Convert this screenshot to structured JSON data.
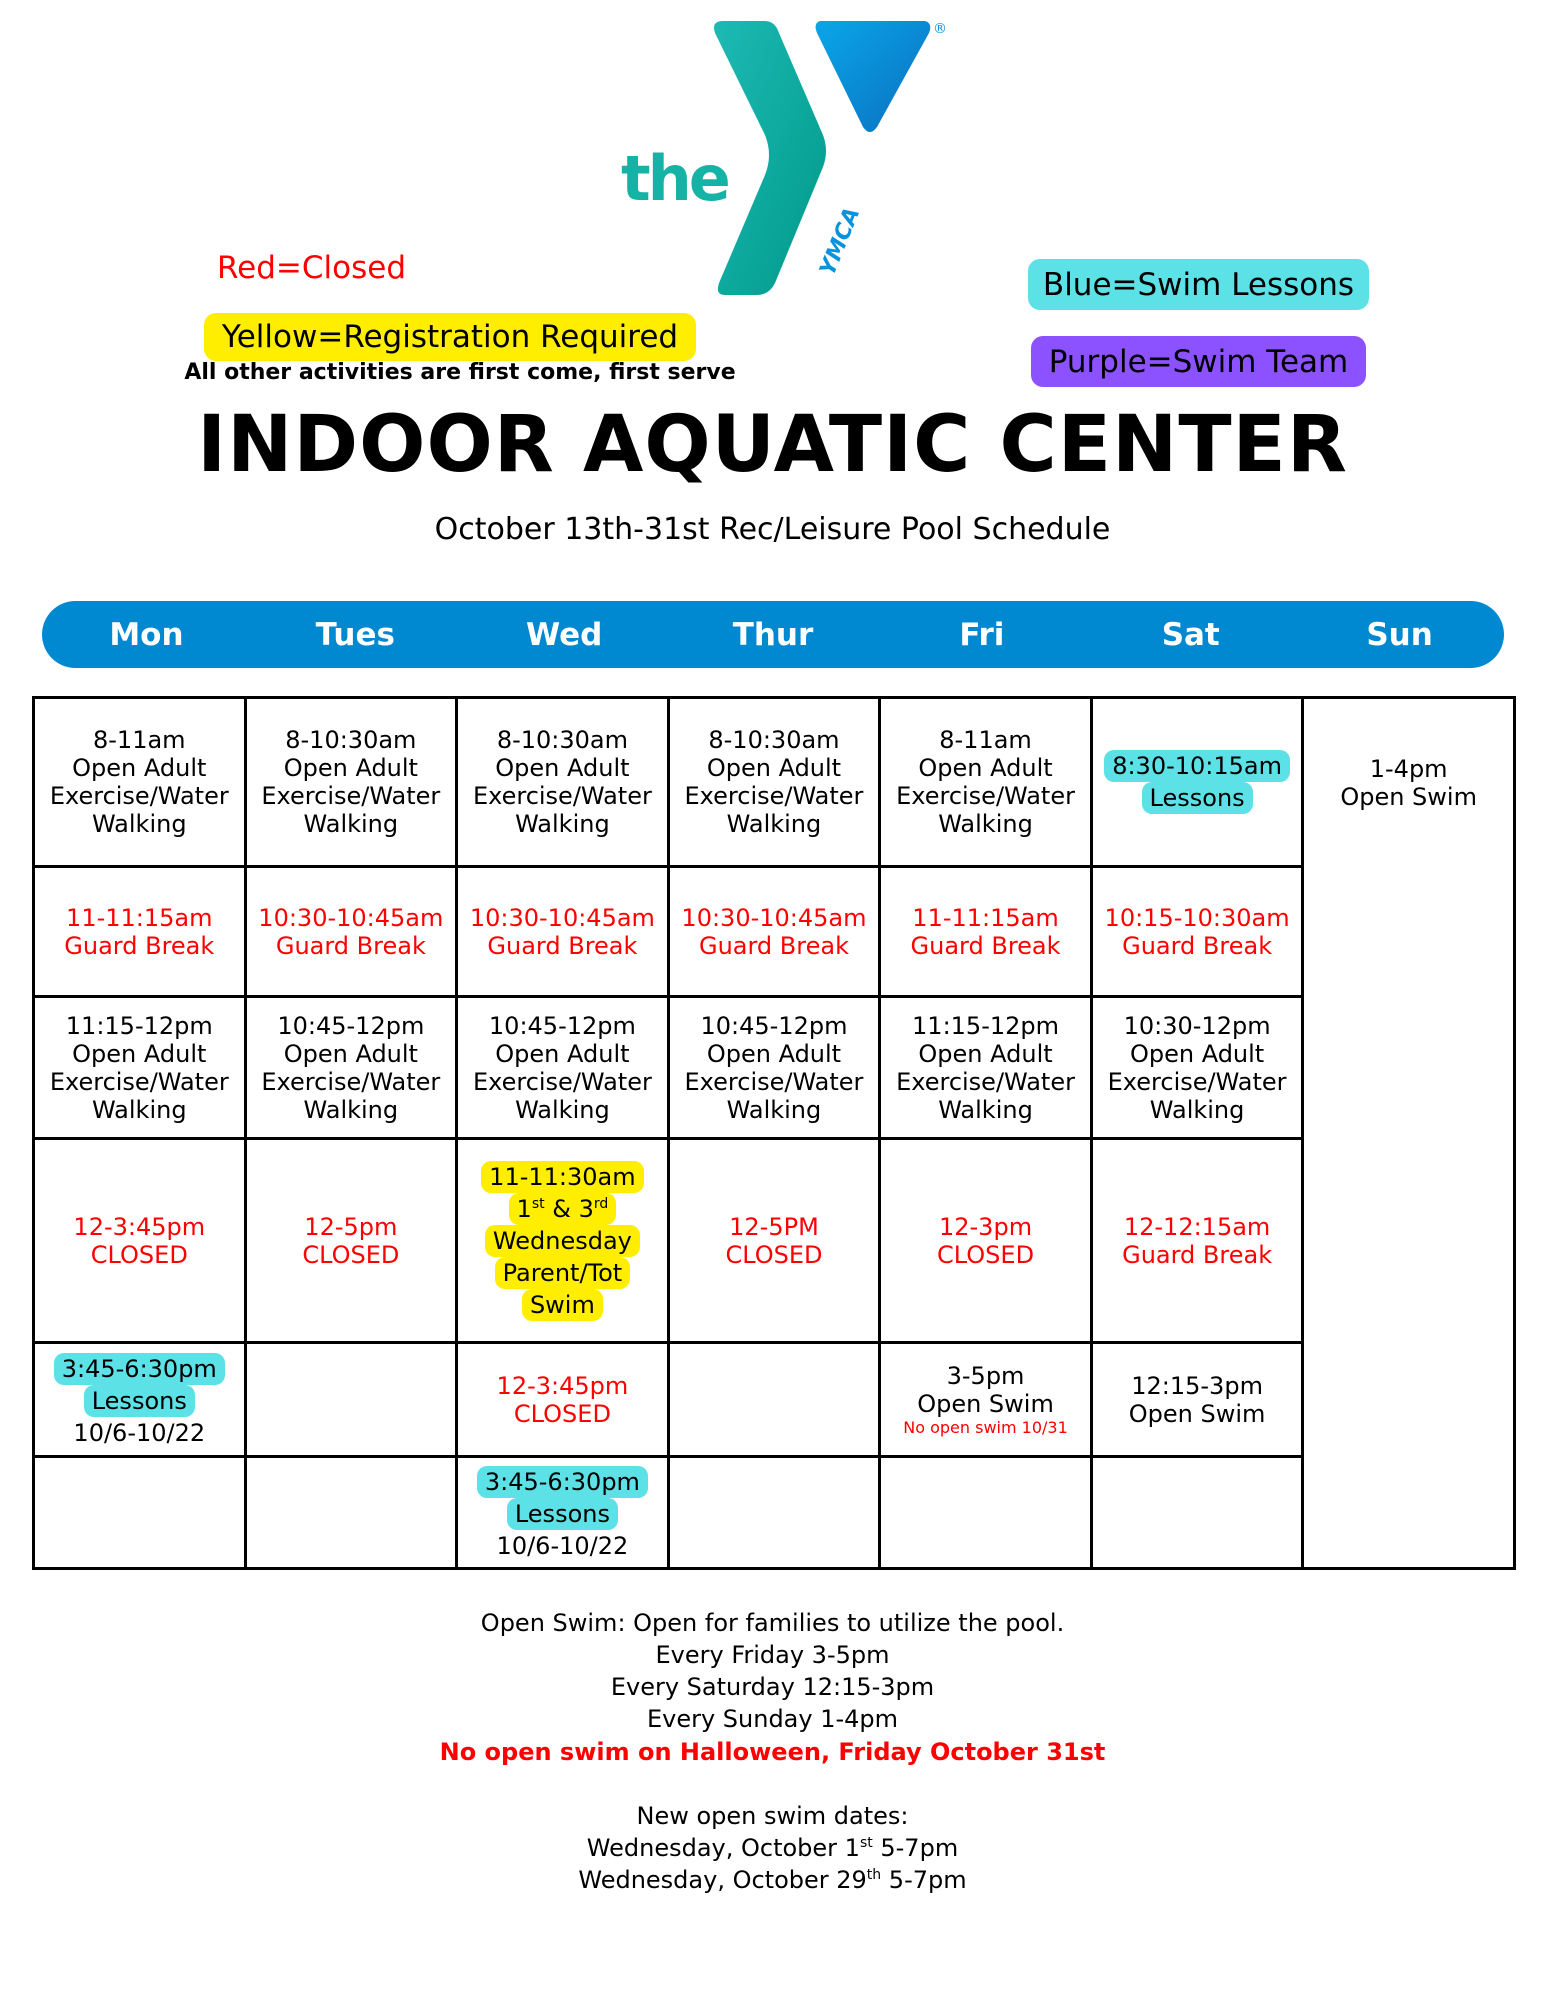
{
  "logo": {
    "word": "the",
    "mark": "YMCA",
    "registered": "®",
    "teal": "#14b3a6",
    "blue": "#0a93dc"
  },
  "legend": {
    "red": "Red=Closed",
    "yellow": "Yellow=Registration Required",
    "note": "All other activities are first come, first serve",
    "blue": "Blue=Swim Lessons",
    "purple": "Purple=Swim Team"
  },
  "colors": {
    "closed": "#ff0000",
    "registration": "#ffee00",
    "lessons": "#5ce1e6",
    "swim_team": "#8c52ff",
    "header": "#0088d1"
  },
  "title": "INDOOR AQUATIC CENTER",
  "subtitle": "October 13th-31st Rec/Leisure Pool Schedule",
  "days": [
    "Mon",
    "Tues",
    "Wed",
    "Thur",
    "Fri",
    "Sat",
    "Sun"
  ],
  "rows": [
    [
      {
        "lines": [
          "8-11am",
          "Open Adult",
          "Exercise/Water",
          "Walking"
        ]
      },
      {
        "lines": [
          "8-10:30am",
          "Open Adult",
          "Exercise/Water",
          "Walking"
        ]
      },
      {
        "lines": [
          "8-10:30am",
          "Open Adult",
          "Exercise/Water",
          "Walking"
        ]
      },
      {
        "lines": [
          "8-10:30am",
          "Open Adult",
          "Exercise/Water",
          "Walking"
        ]
      },
      {
        "lines": [
          "8-11am",
          "Open Adult",
          "Exercise/Water",
          "Walking"
        ]
      },
      {
        "lines": [
          "8:30-10:15am",
          "Lessons"
        ],
        "style": "blue"
      },
      {
        "lines": [
          "1-4pm",
          "Open Swim"
        ]
      }
    ],
    [
      {
        "lines": [
          "11-11:15am",
          "Guard Break"
        ],
        "style": "red"
      },
      {
        "lines": [
          "10:30-10:45am",
          "Guard Break"
        ],
        "style": "red"
      },
      {
        "lines": [
          "10:30-10:45am",
          "Guard Break"
        ],
        "style": "red"
      },
      {
        "lines": [
          "10:30-10:45am",
          "Guard Break"
        ],
        "style": "red"
      },
      {
        "lines": [
          "11-11:15am",
          "Guard Break"
        ],
        "style": "red"
      },
      {
        "lines": [
          "10:15-10:30am",
          "Guard Break"
        ],
        "style": "red"
      }
    ],
    [
      {
        "lines": [
          "11:15-12pm",
          "Open Adult",
          "Exercise/Water",
          "Walking"
        ]
      },
      {
        "lines": [
          "10:45-12pm",
          "Open Adult",
          "Exercise/Water",
          "Walking"
        ]
      },
      {
        "lines": [
          "10:45-12pm",
          "Open Adult",
          "Exercise/Water",
          "Walking"
        ]
      },
      {
        "lines": [
          "10:45-12pm",
          "Open Adult",
          "Exercise/Water",
          "Walking"
        ]
      },
      {
        "lines": [
          "11:15-12pm",
          "Open Adult",
          "Exercise/Water",
          "Walking"
        ]
      },
      {
        "lines": [
          "10:30-12pm",
          "Open Adult",
          "Exercise/Water",
          "Walking"
        ]
      }
    ],
    [
      {
        "lines": [
          "12-3:45pm",
          "CLOSED"
        ],
        "style": "red"
      },
      {
        "lines": [
          "12-5pm",
          "CLOSED"
        ],
        "style": "red"
      },
      {
        "lines": [
          "11-11:30am",
          "1st & 3rd",
          "Wednesday",
          "Parent/Tot",
          "Swim"
        ],
        "style": "yellow"
      },
      {
        "lines": [
          "12-5PM",
          "CLOSED"
        ],
        "style": "red"
      },
      {
        "lines": [
          "12-3pm",
          "CLOSED"
        ],
        "style": "red"
      },
      {
        "lines": [
          "12-12:15am",
          "Guard Break"
        ],
        "style": "red"
      }
    ],
    [
      {
        "lines": [
          "3:45-6:30pm",
          "Lessons"
        ],
        "style": "blue",
        "sub": "10/6-10/22"
      },
      {
        "lines": []
      },
      {
        "lines": [
          "12-3:45pm",
          "CLOSED"
        ],
        "style": "red"
      },
      {
        "lines": []
      },
      {
        "lines": [
          "3-5pm",
          "Open Swim"
        ],
        "note": "No open swim 10/31"
      },
      {
        "lines": [
          "12:15-3pm",
          "Open Swim"
        ]
      }
    ],
    [
      {
        "lines": []
      },
      {
        "lines": []
      },
      {
        "lines": [
          "3:45-6:30pm",
          "Lessons"
        ],
        "style": "blue",
        "sub": "10/6-10/22"
      },
      {
        "lines": []
      },
      {
        "lines": []
      },
      {
        "lines": []
      }
    ]
  ],
  "footer": {
    "lines": [
      "Open Swim: Open for families to utilize the pool.",
      "Every Friday 3-5pm",
      "Every Saturday 12:15-3pm",
      "Every Sunday 1-4pm"
    ],
    "alert": "No open swim on Halloween, Friday October 31st",
    "new_heading": "New open swim dates:",
    "new_dates": [
      "Wednesday, October 1st 5-7pm",
      "Wednesday, October 29th 5-7pm"
    ]
  }
}
